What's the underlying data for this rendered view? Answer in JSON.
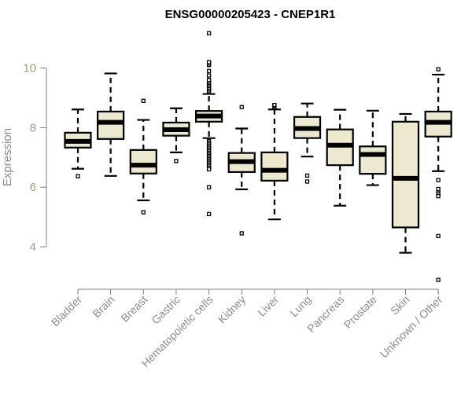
{
  "chart_data": {
    "type": "boxplot",
    "title": "ENSG00000205423 - CNEP1R1",
    "xlabel": "",
    "ylabel": "Expression",
    "ylim": [
      2.7,
      11.3
    ],
    "yticks": [
      4,
      6,
      8,
      10
    ],
    "grid": false,
    "box_fill": "#ede8d0",
    "categories": [
      "Bladder",
      "Brain",
      "Breast",
      "Gastric",
      "Hematopoietic cells",
      "Kidney",
      "Liver",
      "Lung",
      "Pancreas",
      "Prostate",
      "Skin",
      "Unknown / Other"
    ],
    "boxes": [
      {
        "whisker_low": 6.62,
        "q1": 7.33,
        "median": 7.54,
        "q3": 7.83,
        "whisker_high": 8.61,
        "outliers": [
          6.37
        ]
      },
      {
        "whisker_low": 6.38,
        "q1": 7.62,
        "median": 8.18,
        "q3": 8.54,
        "whisker_high": 9.82,
        "outliers": []
      },
      {
        "whisker_low": 5.56,
        "q1": 6.46,
        "median": 6.74,
        "q3": 7.25,
        "whisker_high": 8.26,
        "outliers": [
          8.9,
          5.16
        ]
      },
      {
        "whisker_low": 7.17,
        "q1": 7.73,
        "median": 7.93,
        "q3": 8.17,
        "whisker_high": 8.65,
        "outliers": [
          6.88
        ]
      },
      {
        "whisker_low": 7.65,
        "q1": 8.2,
        "median": 8.39,
        "q3": 8.56,
        "whisker_high": 9.13,
        "outliers": [
          9.2,
          9.25,
          9.3,
          9.35,
          9.4,
          9.45,
          9.5,
          9.55,
          9.6,
          9.75,
          9.9,
          10.1,
          10.15,
          10.2,
          11.17,
          7.55,
          7.5,
          7.45,
          7.4,
          7.35,
          7.3,
          7.25,
          7.2,
          7.15,
          7.1,
          7.05,
          7.0,
          6.95,
          6.9,
          6.85,
          6.8,
          6.75,
          6.7,
          6.65,
          6.6,
          6.0,
          5.1
        ]
      },
      {
        "whisker_low": 5.93,
        "q1": 6.51,
        "median": 6.86,
        "q3": 7.15,
        "whisker_high": 7.97,
        "outliers": [
          8.69,
          4.45
        ]
      },
      {
        "whisker_low": 4.92,
        "q1": 6.22,
        "median": 6.57,
        "q3": 7.17,
        "whisker_high": 8.61,
        "outliers": [
          8.68,
          8.72,
          8.76
        ]
      },
      {
        "whisker_low": 7.03,
        "q1": 7.65,
        "median": 7.97,
        "q3": 8.36,
        "whisker_high": 8.81,
        "outliers": [
          6.39,
          6.19
        ]
      },
      {
        "whisker_low": 5.38,
        "q1": 6.74,
        "median": 7.41,
        "q3": 7.94,
        "whisker_high": 8.6,
        "outliers": []
      },
      {
        "whisker_low": 6.07,
        "q1": 6.45,
        "median": 7.1,
        "q3": 7.37,
        "whisker_high": 8.57,
        "outliers": []
      },
      {
        "whisker_low": 3.8,
        "q1": 4.65,
        "median": 6.3,
        "q3": 8.2,
        "whisker_high": 8.46,
        "outliers": []
      },
      {
        "whisker_low": 6.54,
        "q1": 7.7,
        "median": 8.18,
        "q3": 8.54,
        "whisker_high": 9.78,
        "outliers": [
          9.96,
          6.24,
          5.94,
          5.82,
          5.76,
          5.7,
          4.36,
          2.89
        ]
      }
    ]
  }
}
